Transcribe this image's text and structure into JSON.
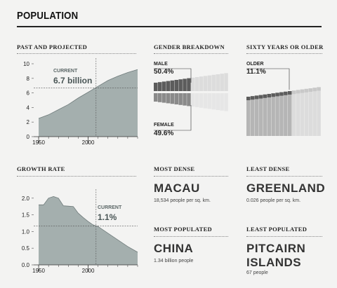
{
  "page_title": "POPULATION",
  "chart_data": [
    {
      "type": "area",
      "title": "PAST AND PROJECTED",
      "x": [
        1950,
        1960,
        1970,
        1980,
        1990,
        2000,
        2010,
        2020,
        2030,
        2040,
        2050
      ],
      "values": [
        2.5,
        3.0,
        3.7,
        4.4,
        5.3,
        6.1,
        6.9,
        7.7,
        8.3,
        8.8,
        9.2
      ],
      "xticks": [
        "1950",
        "2000"
      ],
      "yticks": [
        "0",
        "2",
        "4",
        "6",
        "8",
        "10"
      ],
      "ylim": [
        0,
        10
      ],
      "xlim": [
        1945,
        2050
      ],
      "annotation": {
        "label": "CURRENT",
        "value": "6.7 billion",
        "x": 2008,
        "y": 6.7
      }
    },
    {
      "type": "area",
      "title": "GROWTH RATE",
      "x": [
        1950,
        1955,
        1960,
        1965,
        1970,
        1975,
        1980,
        1985,
        1990,
        1995,
        2000,
        2005,
        2010,
        2020,
        2030,
        2040,
        2050
      ],
      "values": [
        1.8,
        1.8,
        2.0,
        2.05,
        2.0,
        1.77,
        1.76,
        1.75,
        1.55,
        1.42,
        1.3,
        1.2,
        1.15,
        0.95,
        0.75,
        0.55,
        0.38
      ],
      "xticks": [
        "1950",
        "2000"
      ],
      "yticks": [
        "0.0",
        "0.5",
        "1.0",
        "1.5",
        "2.0"
      ],
      "ylim": [
        0,
        2.1
      ],
      "xlim": [
        1945,
        2050
      ],
      "annotation": {
        "label": "CURRENT",
        "value": "1.1%",
        "x": 2008,
        "y": 1.17
      }
    },
    {
      "type": "bar",
      "title": "GENDER BREAKDOWN",
      "series": [
        {
          "name": "MALE",
          "value": "50.4%"
        },
        {
          "name": "FEMALE",
          "value": "49.6%"
        }
      ]
    },
    {
      "type": "bar",
      "title": "SIXTY YEARS OR OLDER",
      "series": [
        {
          "name": "OLDER",
          "value": "11.1%"
        }
      ]
    }
  ],
  "stats": [
    {
      "heading": "MOST DENSE",
      "name": "MACAU",
      "detail": "18,534 people per sq. km."
    },
    {
      "heading": "LEAST DENSE",
      "name": "GREENLAND",
      "detail": "0.026 people per sq. km."
    },
    {
      "heading": "MOST POPULATED",
      "name": "CHINA",
      "detail": "1.34 billion people"
    },
    {
      "heading": "LEAST POPULATED",
      "name": "PITCAIRN ISLANDS",
      "detail": "67 people"
    }
  ],
  "colors": {
    "area": "#a4afae",
    "area_stroke": "#6e7a7a",
    "dark_bar": "#5c5c5c",
    "light_bar": "#dcdcdc"
  }
}
